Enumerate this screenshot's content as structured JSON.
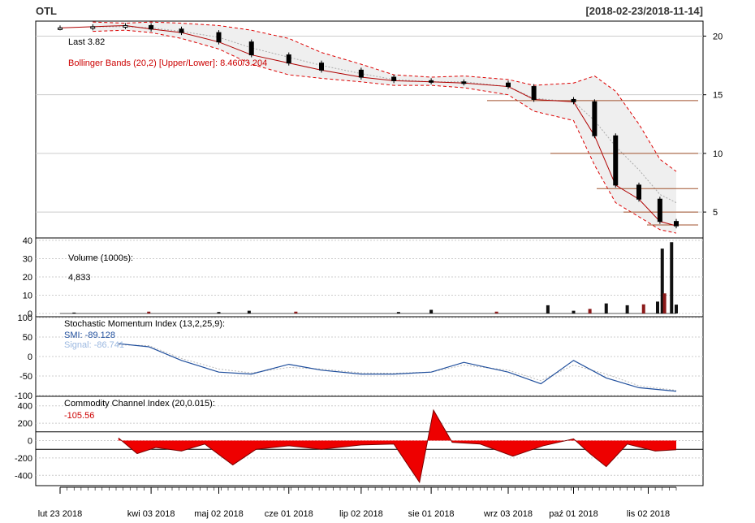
{
  "header": {
    "symbol": "OTL",
    "date_range": "[2018-02-23/2018-11-14]"
  },
  "price_panel": {
    "last_label": "Last 3.82",
    "bbands_label": "Bollinger Bands (20,2) [Upper/Lower]: 8.460/3.204",
    "y_ticks": [
      "20",
      "15",
      "10",
      "5"
    ]
  },
  "volume_panel": {
    "label": "Volume (1000s):",
    "value": "4,833",
    "y_ticks": [
      "40",
      "30",
      "20",
      "10",
      "0"
    ]
  },
  "smi_panel": {
    "label": "Stochastic Momentum Index (13,2,25,9):",
    "smi_label": "SMI: -89.128",
    "signal_label": "Signal: -86.741",
    "y_ticks": [
      "100",
      "50",
      "0",
      "-50",
      "-100"
    ]
  },
  "cci_panel": {
    "label": "Commodity Channel Index (20,0.015):",
    "value": "-105.56",
    "y_ticks": [
      "400",
      "200",
      "0",
      "-200",
      "-400"
    ]
  },
  "x_axis": {
    "labels": [
      "lut 23 2018",
      "kwi 03 2018",
      "maj 02 2018",
      "cze 01 2018",
      "lip 02 2018",
      "sie 01 2018",
      "wrz 03 2018",
      "paź 01 2018",
      "lis 02 2018"
    ]
  },
  "chart_data": [
    {
      "type": "candlestick",
      "dates": [
        "2018-02-23",
        "2018-03-09",
        "2018-03-23",
        "2018-04-03",
        "2018-04-16",
        "2018-05-02",
        "2018-05-16",
        "2018-06-01",
        "2018-06-15",
        "2018-07-02",
        "2018-07-16",
        "2018-08-01",
        "2018-08-15",
        "2018-09-03",
        "2018-09-14",
        "2018-10-01",
        "2018-10-10",
        "2018-10-19",
        "2018-10-29",
        "2018-11-07",
        "2018-11-14"
      ],
      "close": [
        20.7,
        20.8,
        20.9,
        20.6,
        20.3,
        19.5,
        18.4,
        17.7,
        17.1,
        16.5,
        16.2,
        16.1,
        16.0,
        15.7,
        14.6,
        14.4,
        11.5,
        7.3,
        6.1,
        4.2,
        3.82
      ],
      "bbands_upper": [
        null,
        21.2,
        21.1,
        21.2,
        21.1,
        20.9,
        20.5,
        19.8,
        18.6,
        17.6,
        16.7,
        16.5,
        16.6,
        16.3,
        15.8,
        16.0,
        16.6,
        15.3,
        12.5,
        9.5,
        8.46
      ],
      "bbands_lower": [
        null,
        20.4,
        20.5,
        20.3,
        19.8,
        18.9,
        17.6,
        16.7,
        16.4,
        16.1,
        15.8,
        15.8,
        15.6,
        15.0,
        13.6,
        12.8,
        9.0,
        5.8,
        4.6,
        3.5,
        3.204
      ],
      "bbands_ma": [
        null,
        20.8,
        20.8,
        20.7,
        20.4,
        19.9,
        19.0,
        18.2,
        17.5,
        16.8,
        16.3,
        16.1,
        16.1,
        15.7,
        14.7,
        14.4,
        12.8,
        10.6,
        8.6,
        6.5,
        5.8
      ],
      "horizontal_levels": [
        14.5,
        10.0,
        7.0,
        5.0,
        3.9
      ],
      "ylim": [
        3,
        21
      ]
    },
    {
      "type": "bar",
      "name": "Volume (1000s)",
      "dates": [
        "2018-03-01",
        "2018-04-02",
        "2018-05-02",
        "2018-05-15",
        "2018-06-04",
        "2018-07-18",
        "2018-08-01",
        "2018-08-29",
        "2018-09-20",
        "2018-10-01",
        "2018-10-08",
        "2018-10-15",
        "2018-10-24",
        "2018-10-31",
        "2018-11-06",
        "2018-11-08",
        "2018-11-09",
        "2018-11-12",
        "2018-11-14"
      ],
      "values": [
        0.5,
        1,
        0.8,
        1.5,
        1,
        0.8,
        2,
        1,
        4.5,
        1.5,
        2.5,
        5.5,
        4.5,
        5,
        6.5,
        35.5,
        11,
        39,
        4.833
      ],
      "ylim": [
        0,
        40
      ]
    },
    {
      "type": "line",
      "name": "Stochastic Momentum Index",
      "dates": [
        "2018-03-20",
        "2018-04-02",
        "2018-04-16",
        "2018-05-02",
        "2018-05-16",
        "2018-06-01",
        "2018-06-15",
        "2018-07-02",
        "2018-07-16",
        "2018-08-01",
        "2018-08-15",
        "2018-09-03",
        "2018-09-17",
        "2018-10-01",
        "2018-10-15",
        "2018-10-29",
        "2018-11-14"
      ],
      "smi": [
        33,
        25,
        -10,
        -40,
        -45,
        -20,
        -35,
        -45,
        -45,
        -40,
        -15,
        -40,
        -70,
        -10,
        -55,
        -80,
        -89.128
      ],
      "signal": [
        30,
        28,
        -5,
        -32,
        -42,
        -28,
        -32,
        -42,
        -43,
        -40,
        -22,
        -35,
        -62,
        -22,
        -45,
        -75,
        -86.741
      ],
      "ylim": [
        -100,
        100
      ]
    },
    {
      "type": "area",
      "name": "Commodity Channel Index",
      "dates": [
        "2018-03-20",
        "2018-03-28",
        "2018-04-05",
        "2018-04-16",
        "2018-04-26",
        "2018-05-08",
        "2018-05-18",
        "2018-06-01",
        "2018-06-15",
        "2018-07-02",
        "2018-07-16",
        "2018-07-27",
        "2018-08-02",
        "2018-08-10",
        "2018-08-22",
        "2018-09-05",
        "2018-09-18",
        "2018-10-01",
        "2018-10-08",
        "2018-10-15",
        "2018-10-24",
        "2018-11-05",
        "2018-11-14"
      ],
      "values": [
        30,
        -150,
        -80,
        -120,
        -40,
        -280,
        -100,
        -60,
        -100,
        -50,
        -40,
        -480,
        350,
        -20,
        -40,
        -180,
        -60,
        20,
        -150,
        -300,
        -40,
        -120,
        -105.56
      ],
      "ylim": [
        -500,
        500
      ]
    }
  ]
}
